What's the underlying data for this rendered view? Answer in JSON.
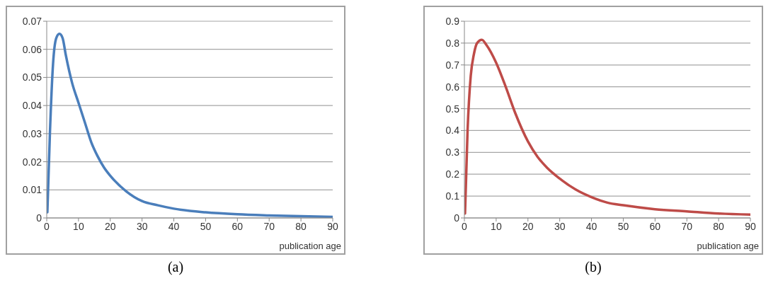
{
  "chart_data": [
    {
      "type": "line",
      "xlabel": "publication age",
      "annotations": [
        "(a)"
      ],
      "grid": "y",
      "xlim": [
        0,
        90
      ],
      "xticks": [
        0,
        10,
        20,
        30,
        40,
        50,
        60,
        70,
        80,
        90
      ],
      "ylim": [
        0,
        0.07
      ],
      "yticks": [
        0,
        0.01,
        0.02,
        0.03,
        0.04,
        0.05,
        0.06,
        0.07
      ],
      "series": [
        {
          "color": "#4a7ebb",
          "x": [
            0.2,
            1,
            2,
            3,
            4,
            5,
            6,
            8,
            10,
            12,
            14,
            16,
            18,
            20,
            25,
            30,
            35,
            40,
            50,
            60,
            70,
            80,
            90
          ],
          "values": [
            0.002,
            0.03,
            0.055,
            0.064,
            0.0655,
            0.064,
            0.058,
            0.048,
            0.041,
            0.034,
            0.027,
            0.022,
            0.018,
            0.015,
            0.0095,
            0.006,
            0.0045,
            0.0033,
            0.002,
            0.0013,
            0.0009,
            0.0006,
            0.0004
          ]
        }
      ]
    },
    {
      "type": "line",
      "xlabel": "publication age",
      "annotations": [
        "(b)"
      ],
      "grid": "y",
      "xlim": [
        0,
        90
      ],
      "xticks": [
        0,
        10,
        20,
        30,
        40,
        50,
        60,
        70,
        80,
        90
      ],
      "ylim": [
        0,
        0.9
      ],
      "yticks": [
        0,
        0.1,
        0.2,
        0.3,
        0.4,
        0.5,
        0.6,
        0.7,
        0.8,
        0.9
      ],
      "series": [
        {
          "color": "#be4b48",
          "x": [
            0.2,
            1,
            2,
            3,
            4,
            5.5,
            7,
            10,
            13,
            16,
            20,
            23,
            26,
            30,
            35,
            40,
            45,
            50,
            60,
            70,
            80,
            90
          ],
          "values": [
            0.02,
            0.4,
            0.65,
            0.75,
            0.8,
            0.815,
            0.79,
            0.71,
            0.6,
            0.48,
            0.35,
            0.28,
            0.23,
            0.18,
            0.13,
            0.095,
            0.07,
            0.058,
            0.04,
            0.03,
            0.02,
            0.015
          ]
        }
      ]
    }
  ]
}
